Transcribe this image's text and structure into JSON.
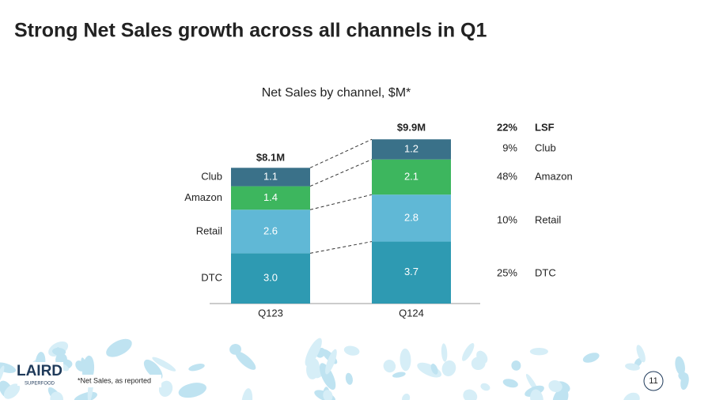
{
  "slide": {
    "title": "Strong Net Sales growth across all channels in Q1",
    "footnote": "*Net Sales, as reported",
    "page_number": "11",
    "logo": "LAIRD",
    "logo_sub": "SUPERFOOD"
  },
  "chart_data": {
    "type": "stacked_bar",
    "title": "Net Sales by channel, $M*",
    "categories": [
      "Q123",
      "Q124"
    ],
    "series": [
      {
        "name": "DTC",
        "color": "#2e9ab2",
        "values": [
          3.0,
          3.7
        ],
        "value_labels": [
          "3.0",
          "3.7"
        ]
      },
      {
        "name": "Retail",
        "color": "#60b8d6",
        "values": [
          2.6,
          2.8
        ],
        "value_labels": [
          "2.6",
          "2.8"
        ]
      },
      {
        "name": "Amazon",
        "color": "#3db65e",
        "values": [
          1.4,
          2.1
        ],
        "value_labels": [
          "1.4",
          "2.1"
        ]
      },
      {
        "name": "Club",
        "color": "#3a7189",
        "values": [
          1.1,
          1.2
        ],
        "value_labels": [
          "1.1",
          "1.2"
        ]
      }
    ],
    "totals": {
      "values": [
        8.1,
        9.9
      ],
      "value_labels": [
        "$8.1M",
        "$9.9M"
      ]
    },
    "growth": {
      "labels": [
        "LSF",
        "Club",
        "Amazon",
        "Retail",
        "DTC"
      ],
      "values": [
        22,
        9,
        48,
        10,
        25
      ],
      "value_labels": [
        "22%",
        "9%",
        "48%",
        "10%",
        "25%"
      ]
    }
  }
}
